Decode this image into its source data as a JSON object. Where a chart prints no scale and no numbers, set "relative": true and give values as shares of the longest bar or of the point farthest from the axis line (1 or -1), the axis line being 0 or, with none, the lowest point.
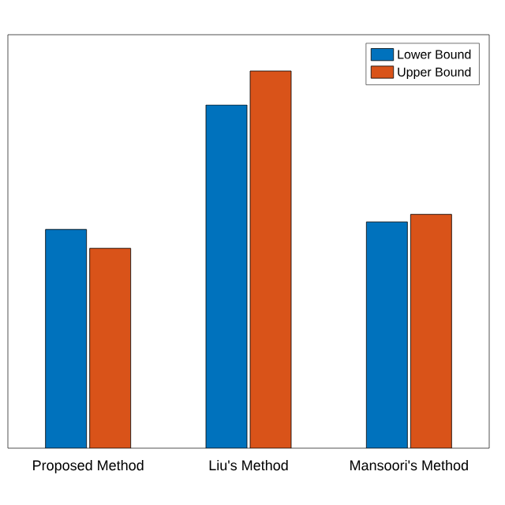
{
  "chart_data": {
    "type": "bar",
    "relative": true,
    "categories": [
      "Proposed Method",
      "Liu's Method",
      "Mansoori's Method"
    ],
    "series": [
      {
        "name": "Lower Bound",
        "color": "#0072bd",
        "values": [
          0.58,
          0.91,
          0.6
        ]
      },
      {
        "name": "Upper Bound",
        "color": "#d95319",
        "values": [
          0.53,
          1,
          0.62
        ]
      }
    ],
    "legend": "top right"
  }
}
